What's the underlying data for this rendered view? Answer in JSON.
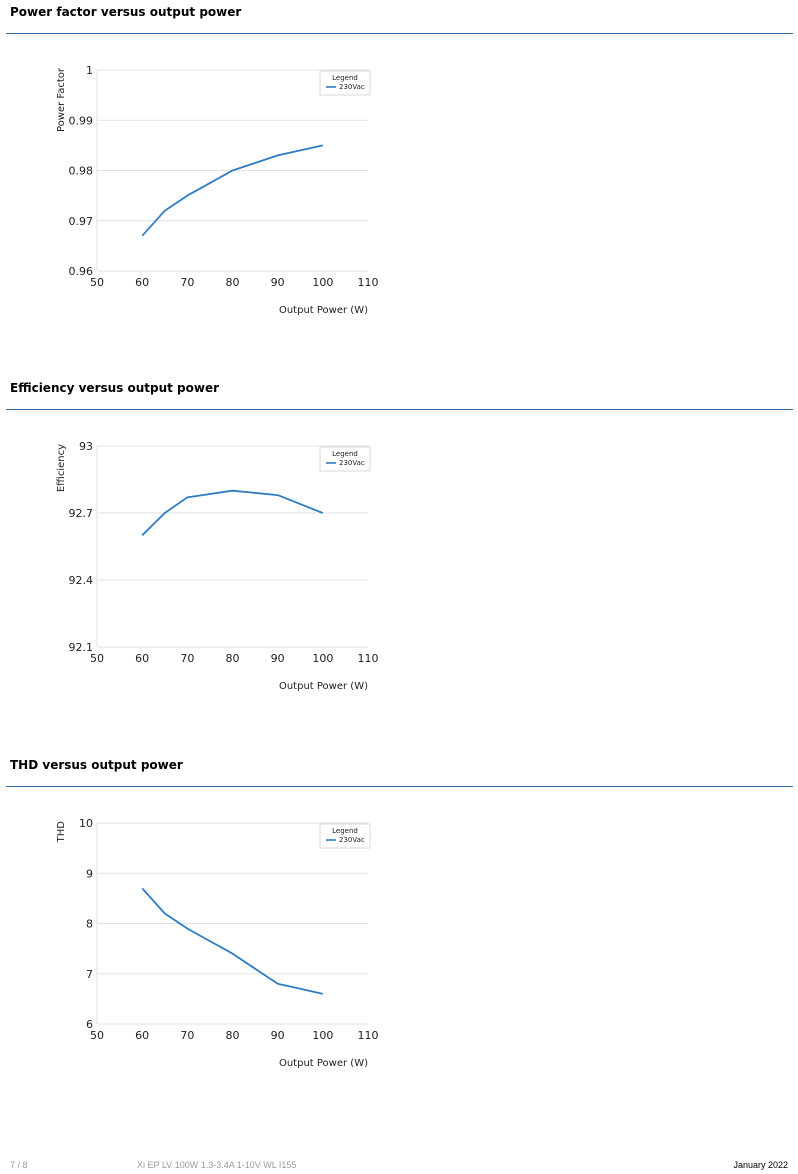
{
  "sections": [
    {
      "title": "Power factor versus output power",
      "chart_data": {
        "type": "line",
        "ylabel": "Power Factor",
        "xlabel": "Output Power (W)",
        "xlim": [
          50,
          110
        ],
        "ylim": [
          0.96,
          1
        ],
        "x_ticks": [
          "50",
          "60",
          "70",
          "80",
          "90",
          "100",
          "110"
        ],
        "y_ticks": [
          "0.96",
          "0.97",
          "0.98",
          "0.99",
          "1"
        ],
        "legend_title": "Legend",
        "legend_position": "top-right",
        "series": [
          {
            "name": "230Vac",
            "color": "#2e7cc4",
            "x": [
              60,
              65,
              70,
              75,
              80,
              85,
              90,
              95,
              100
            ],
            "y": [
              0.967,
              0.972,
              0.975,
              0.9775,
              0.98,
              0.9815,
              0.983,
              0.984,
              0.985
            ]
          }
        ]
      }
    },
    {
      "title": "Efficiency versus output power",
      "chart_data": {
        "type": "line",
        "ylabel": "Efficiency",
        "xlabel": "Output Power (W)",
        "xlim": [
          50,
          110
        ],
        "ylim": [
          92.1,
          93
        ],
        "x_ticks": [
          "50",
          "60",
          "70",
          "80",
          "90",
          "100",
          "110"
        ],
        "y_ticks": [
          "92.1",
          "92.4",
          "92.7",
          "93"
        ],
        "legend_title": "Legend",
        "legend_position": "top-right",
        "series": [
          {
            "name": "230Vac",
            "color": "#2e7cc4",
            "x": [
              60,
              65,
              70,
              80,
              90,
              100
            ],
            "y": [
              92.6,
              92.7,
              92.77,
              92.8,
              92.78,
              92.7
            ]
          }
        ]
      }
    },
    {
      "title": "THD versus output power",
      "chart_data": {
        "type": "line",
        "ylabel": "THD",
        "xlabel": "Output Power (W)",
        "xlim": [
          50,
          110
        ],
        "ylim": [
          6,
          10
        ],
        "x_ticks": [
          "50",
          "60",
          "70",
          "80",
          "90",
          "100",
          "110"
        ],
        "y_ticks": [
          "6",
          "7",
          "8",
          "9",
          "10"
        ],
        "legend_title": "Legend",
        "legend_position": "top-right",
        "series": [
          {
            "name": "230Vac",
            "color": "#2e7cc4",
            "x": [
              60,
              65,
              70,
              75,
              80,
              85,
              90,
              95,
              100
            ],
            "y": [
              8.7,
              8.2,
              7.9,
              7.65,
              7.4,
              7.1,
              6.8,
              6.7,
              6.6
            ]
          }
        ]
      }
    }
  ],
  "footer": {
    "page": "7 / 8",
    "product": "Xi EP LV 100W 1.3-3.4A 1-10V WL I155",
    "date": "January 2022"
  }
}
